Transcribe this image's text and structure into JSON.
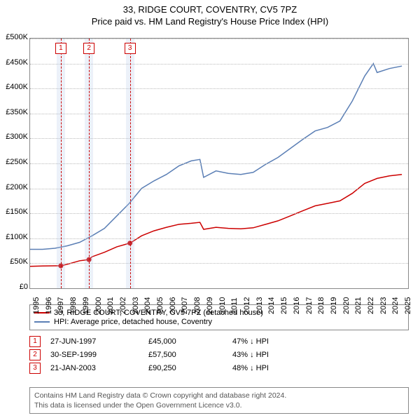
{
  "title": "33, RIDGE COURT, COVENTRY, CV5 7PZ",
  "subtitle": "Price paid vs. HM Land Registry's House Price Index (HPI)",
  "chart": {
    "type": "line",
    "background_color": "#ffffff",
    "grid_color": "#bbbbbb",
    "border_color": "#888888",
    "x_years": [
      1995,
      1996,
      1997,
      1998,
      1999,
      2000,
      2001,
      2002,
      2003,
      2004,
      2005,
      2006,
      2007,
      2008,
      2009,
      2010,
      2011,
      2012,
      2013,
      2014,
      2015,
      2016,
      2017,
      2018,
      2019,
      2020,
      2021,
      2022,
      2023,
      2024,
      2025
    ],
    "xlim": [
      1995,
      2025.5
    ],
    "ylim": [
      0,
      500000
    ],
    "ytick_step": 50000,
    "ytick_labels": [
      "£0",
      "£50K",
      "£100K",
      "£150K",
      "£200K",
      "£250K",
      "£300K",
      "£350K",
      "£400K",
      "£450K",
      "£500K"
    ],
    "title_fontsize": 13,
    "axis_fontsize": 11,
    "series": [
      {
        "name": "33, RIDGE COURT, COVENTRY, CV5 7PZ (detached house)",
        "color": "#cc0000",
        "line_width": 1.5,
        "data": [
          [
            1995,
            44000
          ],
          [
            1996,
            44500
          ],
          [
            1997,
            45000
          ],
          [
            1997.48,
            45000
          ],
          [
            1998,
            48000
          ],
          [
            1999,
            55000
          ],
          [
            1999.75,
            57500
          ],
          [
            2000,
            63000
          ],
          [
            2001,
            72000
          ],
          [
            2002,
            83000
          ],
          [
            2003,
            90000
          ],
          [
            2003.06,
            90250
          ],
          [
            2004,
            105000
          ],
          [
            2005,
            115000
          ],
          [
            2006,
            122000
          ],
          [
            2007,
            128000
          ],
          [
            2008,
            130000
          ],
          [
            2008.7,
            132000
          ],
          [
            2009,
            118000
          ],
          [
            2010,
            122000
          ],
          [
            2011,
            120000
          ],
          [
            2012,
            119000
          ],
          [
            2013,
            121000
          ],
          [
            2014,
            128000
          ],
          [
            2015,
            135000
          ],
          [
            2016,
            145000
          ],
          [
            2017,
            155000
          ],
          [
            2018,
            165000
          ],
          [
            2019,
            170000
          ],
          [
            2020,
            175000
          ],
          [
            2021,
            190000
          ],
          [
            2022,
            210000
          ],
          [
            2023,
            220000
          ],
          [
            2024,
            225000
          ],
          [
            2025,
            228000
          ]
        ]
      },
      {
        "name": "HPI: Average price, detached house, Coventry",
        "color": "#5b7fb5",
        "line_width": 1.5,
        "data": [
          [
            1995,
            78000
          ],
          [
            1996,
            78000
          ],
          [
            1997,
            80000
          ],
          [
            1998,
            85000
          ],
          [
            1999,
            92000
          ],
          [
            2000,
            105000
          ],
          [
            2001,
            120000
          ],
          [
            2002,
            145000
          ],
          [
            2003,
            170000
          ],
          [
            2004,
            200000
          ],
          [
            2005,
            215000
          ],
          [
            2006,
            228000
          ],
          [
            2007,
            245000
          ],
          [
            2008,
            255000
          ],
          [
            2008.7,
            258000
          ],
          [
            2009,
            222000
          ],
          [
            2010,
            235000
          ],
          [
            2011,
            230000
          ],
          [
            2012,
            228000
          ],
          [
            2013,
            232000
          ],
          [
            2014,
            248000
          ],
          [
            2015,
            262000
          ],
          [
            2016,
            280000
          ],
          [
            2017,
            298000
          ],
          [
            2018,
            315000
          ],
          [
            2019,
            322000
          ],
          [
            2020,
            335000
          ],
          [
            2021,
            375000
          ],
          [
            2022,
            425000
          ],
          [
            2022.7,
            450000
          ],
          [
            2023,
            432000
          ],
          [
            2024,
            440000
          ],
          [
            2025,
            445000
          ]
        ]
      }
    ],
    "transactions": [
      {
        "num": "1",
        "year": 1997.48,
        "value": 45000,
        "date": "27-JUN-1997",
        "price": "£45,000",
        "diff": "47% ↓ HPI"
      },
      {
        "num": "2",
        "year": 1999.75,
        "value": 57500,
        "date": "30-SEP-1999",
        "price": "£57,500",
        "diff": "43% ↓ HPI"
      },
      {
        "num": "3",
        "year": 2003.06,
        "value": 90250,
        "date": "21-JAN-2003",
        "price": "£90,250",
        "diff": "48% ↓ HPI"
      }
    ],
    "vband_color": "rgba(180,200,230,0.25)",
    "vdash_color": "#cc0000",
    "marker_point_color": "#cc0000"
  },
  "legend": {
    "items": [
      {
        "color": "#cc0000",
        "label": "33, RIDGE COURT, COVENTRY, CV5 7PZ (detached house)"
      },
      {
        "color": "#5b7fb5",
        "label": "HPI: Average price, detached house, Coventry"
      }
    ]
  },
  "footer": {
    "line1": "Contains HM Land Registry data © Crown copyright and database right 2024.",
    "line2": "This data is licensed under the Open Government Licence v3.0."
  }
}
